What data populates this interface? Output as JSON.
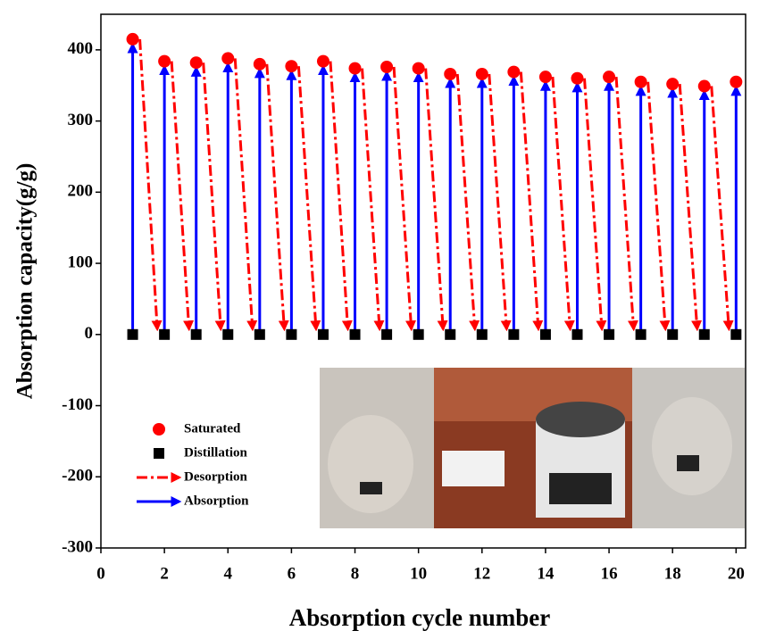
{
  "chart_data": {
    "type": "scatter",
    "x_label": "Absorption cycle number",
    "y_label": "Absorption capacity(g/g)",
    "x": [
      1,
      2,
      3,
      4,
      5,
      6,
      7,
      8,
      9,
      10,
      11,
      12,
      13,
      14,
      15,
      16,
      17,
      18,
      19,
      20
    ],
    "series": [
      {
        "name": "Saturated",
        "color": "#ff0000",
        "values": [
          415,
          384,
          382,
          388,
          380,
          377,
          384,
          374,
          376,
          374,
          366,
          366,
          369,
          362,
          360,
          362,
          355,
          352,
          349,
          355
        ]
      },
      {
        "name": "Distillation",
        "color": "#000000",
        "values": [
          0,
          0,
          0,
          0,
          0,
          0,
          0,
          0,
          0,
          0,
          0,
          0,
          0,
          0,
          0,
          0,
          0,
          0,
          0,
          0
        ]
      }
    ],
    "arrows": [
      {
        "name": "Desorption",
        "color": "#ff0000"
      },
      {
        "name": "Absorption",
        "color": "#0000ff"
      }
    ],
    "xlim": [
      0,
      20.3
    ],
    "xticks": [
      0,
      2,
      4,
      6,
      8,
      10,
      12,
      14,
      16,
      18,
      20
    ],
    "ylim": [
      -300,
      450
    ],
    "yticks": [
      -300,
      -200,
      -100,
      0,
      100,
      200,
      300,
      400
    ]
  }
}
